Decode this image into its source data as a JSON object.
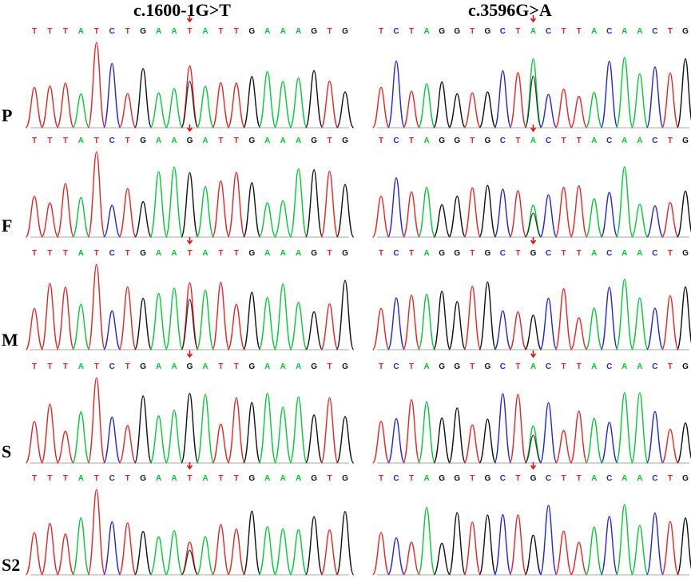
{
  "columns": [
    {
      "title": "c.1600-1G>T",
      "bases_wt": "TTTATCTGAAGATTGAAAGTG",
      "bases_mut": "TTTATCTGAATATTGAAAGTG",
      "variant_index": 10
    },
    {
      "title": "c.3596G>A",
      "bases_wt": "TCTAGGTGCTGCTTACAACTG",
      "bases_mut": "TCTAGGTGCTACTTACAACTG",
      "variant_index": 10
    }
  ],
  "rows": [
    {
      "label": "P",
      "left_variant": true,
      "right_variant": true
    },
    {
      "label": "F",
      "left_variant": false,
      "right_variant": true
    },
    {
      "label": "M",
      "left_variant": true,
      "right_variant": false
    },
    {
      "label": "S",
      "left_variant": false,
      "right_variant": true
    },
    {
      "label": "S2",
      "left_variant": true,
      "right_variant": false
    }
  ],
  "colors": {
    "A": "#00cc33",
    "C": "#2222ee",
    "G": "#111111",
    "T": "#ee2222",
    "marker": "#e01010"
  }
}
